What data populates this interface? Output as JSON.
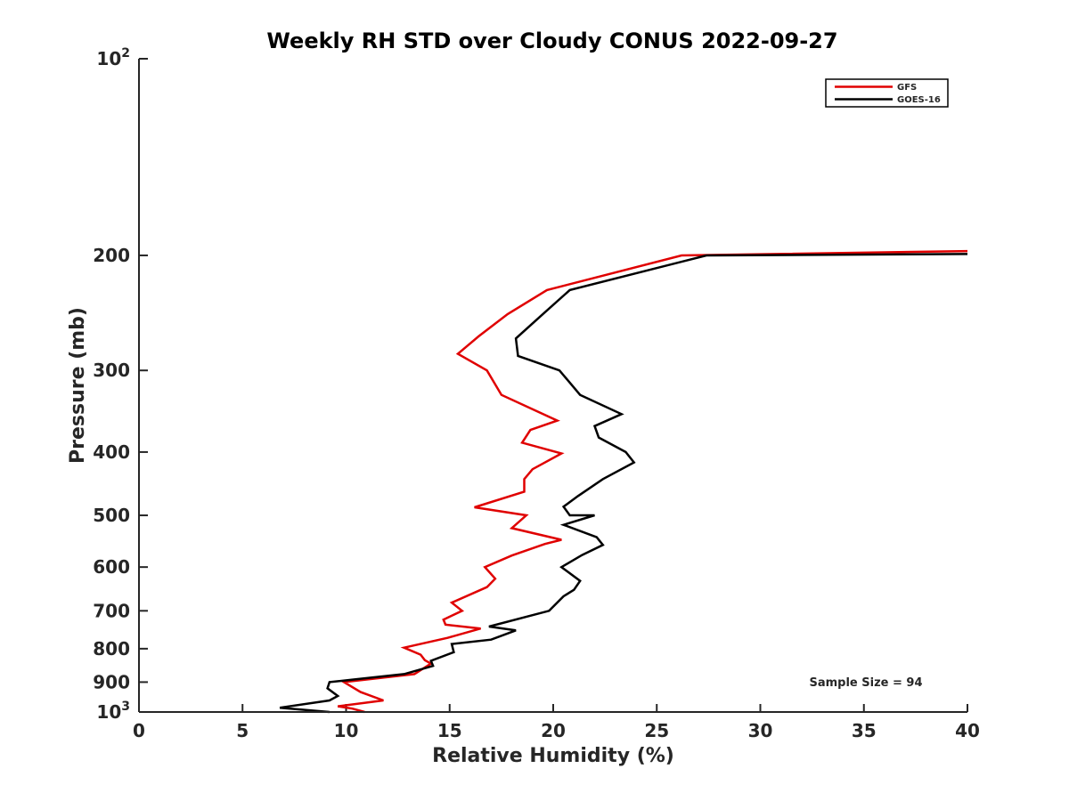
{
  "chart_data": {
    "type": "line",
    "title": "Weekly RH STD over Cloudy CONUS 2022-09-27",
    "xlabel": "Relative Humidity (%)",
    "ylabel": "Pressure (mb)",
    "xlim": [
      0,
      40
    ],
    "ylim": [
      100,
      1000
    ],
    "yscale": "log",
    "y_reversed": true,
    "x_ticks": [
      0,
      5,
      10,
      15,
      20,
      25,
      30,
      35,
      40
    ],
    "x_tick_labels": [
      "0",
      "5",
      "10",
      "15",
      "20",
      "25",
      "30",
      "35",
      "40"
    ],
    "y_ticks": [
      {
        "value": 100,
        "base": "10",
        "exp": "2"
      },
      {
        "value": 200,
        "label": "200"
      },
      {
        "value": 300,
        "label": "300"
      },
      {
        "value": 400,
        "label": "400"
      },
      {
        "value": 500,
        "label": "500"
      },
      {
        "value": 600,
        "label": "600"
      },
      {
        "value": 700,
        "label": "700"
      },
      {
        "value": 800,
        "label": "800"
      },
      {
        "value": 900,
        "label": "900"
      },
      {
        "value": 1000,
        "base": "10",
        "exp": "3"
      }
    ],
    "grid": false,
    "legend_position": "top-right",
    "annotation": "Sample Size = 94",
    "series": [
      {
        "name": "GFS",
        "color": "#e00000",
        "points": [
          [
            40.0,
            197
          ],
          [
            26.2,
            200
          ],
          [
            19.7,
            226
          ],
          [
            17.8,
            246
          ],
          [
            16.4,
            266
          ],
          [
            15.4,
            283
          ],
          [
            16.8,
            300
          ],
          [
            17.5,
            327
          ],
          [
            20.2,
            358
          ],
          [
            18.9,
            370
          ],
          [
            18.5,
            387
          ],
          [
            20.4,
            402
          ],
          [
            19.0,
            425
          ],
          [
            18.6,
            440
          ],
          [
            18.6,
            460
          ],
          [
            16.2,
            486
          ],
          [
            18.7,
            500
          ],
          [
            18.0,
            523
          ],
          [
            20.4,
            545
          ],
          [
            19.6,
            553
          ],
          [
            18.0,
            576
          ],
          [
            16.7,
            600
          ],
          [
            17.2,
            625
          ],
          [
            16.8,
            644
          ],
          [
            15.1,
            680
          ],
          [
            15.6,
            700
          ],
          [
            14.7,
            722
          ],
          [
            14.8,
            735
          ],
          [
            16.5,
            745
          ],
          [
            14.9,
            770
          ],
          [
            12.8,
            797
          ],
          [
            13.6,
            817
          ],
          [
            13.8,
            833
          ],
          [
            14.1,
            843
          ],
          [
            13.3,
            875
          ],
          [
            9.9,
            900
          ],
          [
            10.7,
            932
          ],
          [
            11.8,
            960
          ],
          [
            9.6,
            980
          ],
          [
            10.3,
            988
          ],
          [
            10.9,
            1000
          ]
        ]
      },
      {
        "name": "GOES-16",
        "color": "#000000",
        "points": [
          [
            40.0,
            199
          ],
          [
            27.4,
            200
          ],
          [
            20.8,
            226
          ],
          [
            19.5,
            246
          ],
          [
            18.2,
            268
          ],
          [
            18.3,
            285
          ],
          [
            20.3,
            300
          ],
          [
            21.3,
            327
          ],
          [
            23.3,
            350
          ],
          [
            22.0,
            365
          ],
          [
            22.2,
            380
          ],
          [
            23.5,
            400
          ],
          [
            23.9,
            415
          ],
          [
            22.4,
            440
          ],
          [
            21.2,
            467
          ],
          [
            20.5,
            485
          ],
          [
            20.8,
            500
          ],
          [
            22.0,
            500
          ],
          [
            20.5,
            517
          ],
          [
            22.1,
            540
          ],
          [
            22.4,
            555
          ],
          [
            21.4,
            575
          ],
          [
            20.4,
            600
          ],
          [
            21.3,
            630
          ],
          [
            21.0,
            650
          ],
          [
            20.5,
            665
          ],
          [
            19.8,
            700
          ],
          [
            16.9,
            740
          ],
          [
            18.2,
            750
          ],
          [
            17.0,
            775
          ],
          [
            15.1,
            787
          ],
          [
            15.2,
            810
          ],
          [
            14.1,
            835
          ],
          [
            14.2,
            850
          ],
          [
            12.8,
            875
          ],
          [
            9.2,
            900
          ],
          [
            9.1,
            920
          ],
          [
            9.6,
            945
          ],
          [
            9.2,
            960
          ],
          [
            6.8,
            985
          ],
          [
            9.2,
            1000
          ]
        ]
      }
    ]
  }
}
